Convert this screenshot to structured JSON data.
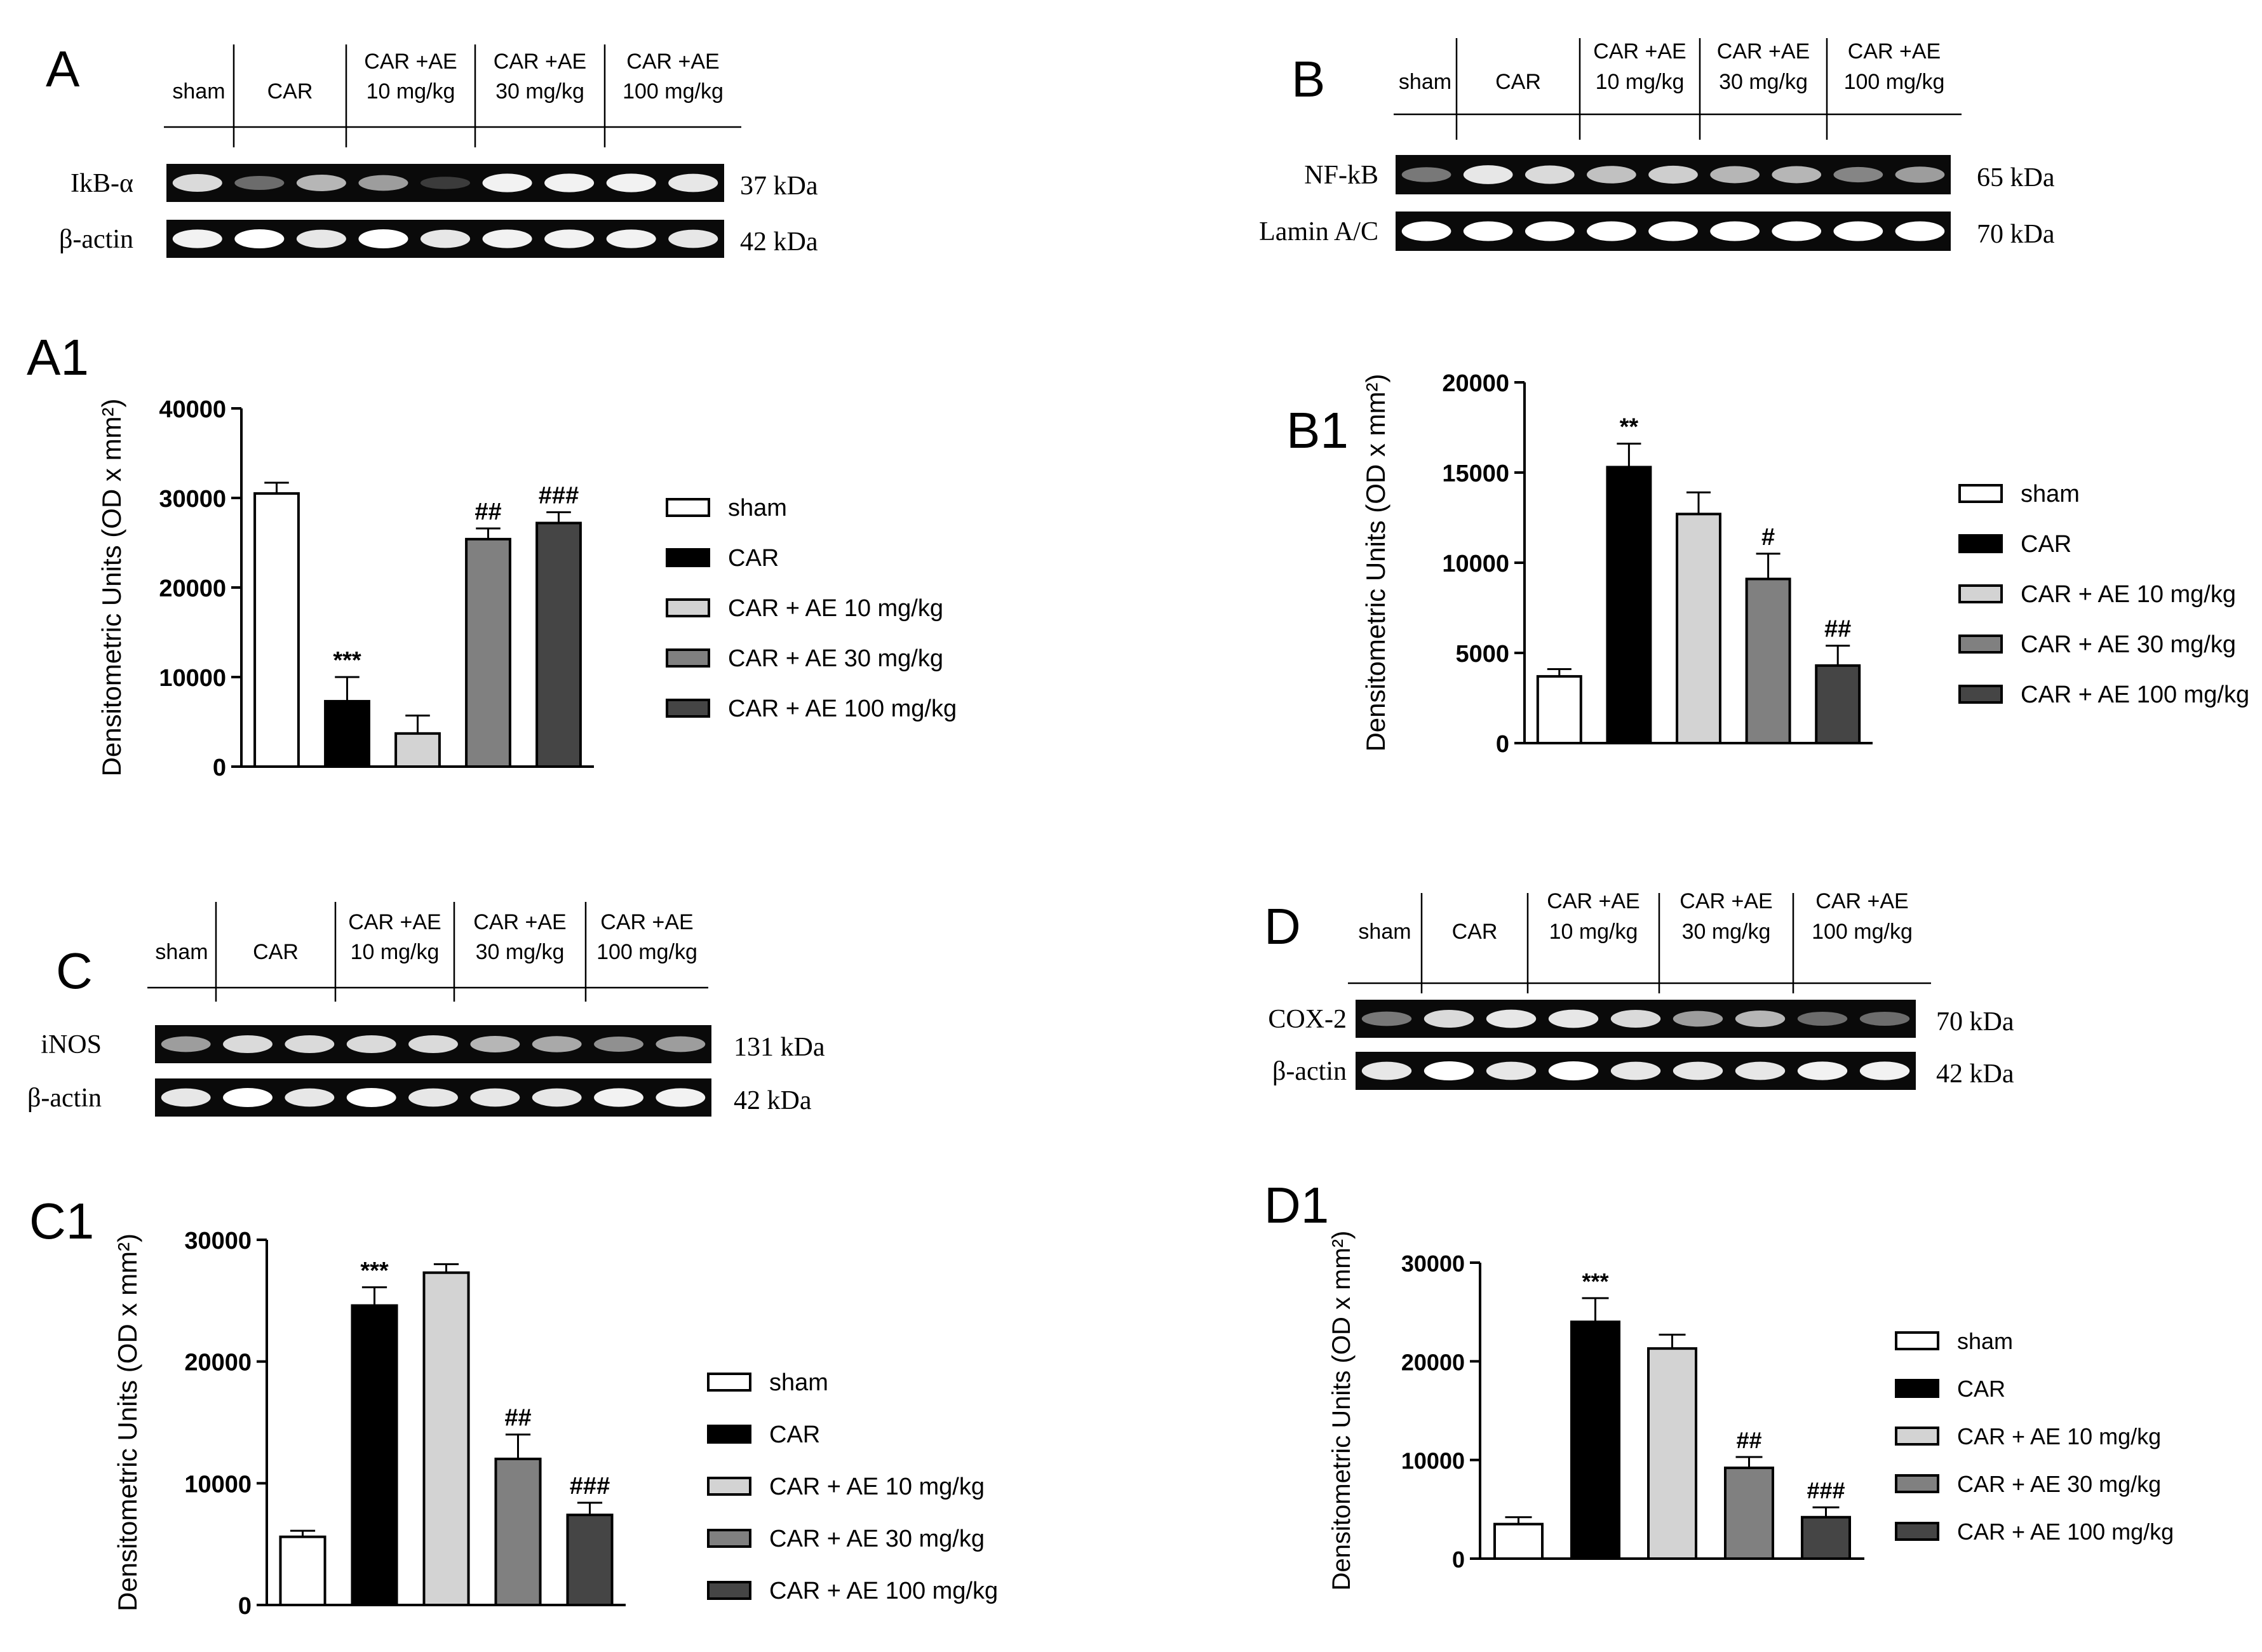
{
  "colors": {
    "sham": "#ffffff",
    "car": "#000000",
    "ae10": "#d3d3d3",
    "ae30": "#808080",
    "ae100": "#454545",
    "axis": "#000000"
  },
  "panels": [
    {
      "id": "A",
      "blot": {
        "letter": "A",
        "header": [
          [
            "sham"
          ],
          [
            "CAR"
          ],
          [
            "CAR +AE",
            "10 mg/kg"
          ],
          [
            "CAR +AE",
            "30 mg/kg"
          ],
          [
            "CAR +AE",
            "100 mg/kg"
          ]
        ],
        "rows": [
          {
            "label": "IkB-α",
            "kda": "37 kDa",
            "intensity": [
              0.85,
              0.4,
              0.7,
              0.6,
              0.2,
              0.95,
              0.95,
              0.95,
              0.9
            ]
          },
          {
            "label": "β-actin",
            "kda": "42 kDa",
            "intensity": [
              0.95,
              1.0,
              0.9,
              1.0,
              0.9,
              0.95,
              0.95,
              0.95,
              0.9
            ]
          }
        ]
      }
    },
    {
      "id": "B",
      "blot": {
        "letter": "B",
        "header": [
          [
            "sham"
          ],
          [
            "CAR"
          ],
          [
            "CAR +AE",
            "10 mg/kg"
          ],
          [
            "CAR +AE",
            "30 mg/kg"
          ],
          [
            "CAR +AE",
            "100 mg/kg"
          ]
        ],
        "rows": [
          {
            "label": "NF-kB",
            "kda": "65 kDa",
            "intensity": [
              0.45,
              0.9,
              0.85,
              0.75,
              0.8,
              0.7,
              0.7,
              0.5,
              0.6
            ]
          },
          {
            "label": "Lamin A/C",
            "kda": "70 kDa",
            "intensity": [
              1.0,
              1.0,
              1.0,
              1.0,
              1.0,
              1.0,
              1.0,
              1.0,
              1.0
            ]
          }
        ]
      }
    },
    {
      "id": "C",
      "blot": {
        "letter": "C",
        "header": [
          [
            "sham"
          ],
          [
            "CAR"
          ],
          [
            "CAR +AE",
            "10 mg/kg"
          ],
          [
            "CAR +AE",
            "30 mg/kg"
          ],
          [
            "CAR +AE",
            "100 mg/kg"
          ]
        ],
        "rows": [
          {
            "label": "iNOS",
            "kda": "131 kDa",
            "intensity": [
              0.6,
              0.85,
              0.85,
              0.85,
              0.85,
              0.7,
              0.65,
              0.55,
              0.6
            ]
          },
          {
            "label": "β-actin",
            "kda": "42 kDa",
            "intensity": [
              0.9,
              1.0,
              0.9,
              1.0,
              0.9,
              0.9,
              0.9,
              0.95,
              0.95
            ]
          }
        ]
      }
    },
    {
      "id": "D",
      "blot": {
        "letter": "D",
        "header": [
          [
            "sham"
          ],
          [
            "CAR"
          ],
          [
            "CAR +AE",
            "10 mg/kg"
          ],
          [
            "CAR +AE",
            "30 mg/kg"
          ],
          [
            "CAR +AE",
            "100 mg/kg"
          ]
        ],
        "rows": [
          {
            "label": "COX-2",
            "kda": "70 kDa",
            "intensity": [
              0.45,
              0.85,
              0.9,
              0.9,
              0.85,
              0.6,
              0.7,
              0.4,
              0.4
            ]
          },
          {
            "label": "β-actin",
            "kda": "42 kDa",
            "intensity": [
              0.9,
              1.0,
              0.9,
              1.0,
              0.9,
              0.9,
              0.9,
              0.95,
              0.95
            ]
          }
        ]
      }
    }
  ],
  "chart_data": [
    {
      "id": "A1",
      "letter": "A1",
      "type": "bar",
      "ylabel": "Densitometric Units (OD x mm²)",
      "ylim": [
        0,
        40000
      ],
      "yticks": [
        0,
        10000,
        20000,
        30000,
        40000
      ],
      "categories": [
        "sham",
        "CAR",
        "CAR + AE 10 mg/kg",
        "CAR + AE 30 mg/kg",
        "CAR + AE 100 mg/kg"
      ],
      "values": [
        30500,
        7300,
        3700,
        25400,
        27200
      ],
      "errors": [
        1200,
        2700,
        2000,
        1200,
        1200
      ],
      "annotations": [
        "",
        "***",
        "",
        "##",
        "###"
      ],
      "legend": [
        "sham",
        "CAR",
        "CAR + AE 10 mg/kg",
        "CAR + AE 30 mg/kg",
        "CAR + AE 100 mg/kg"
      ]
    },
    {
      "id": "B1",
      "letter": "B1",
      "type": "bar",
      "ylabel": "Densitometric Units (OD x mm²)",
      "ylim": [
        0,
        20000
      ],
      "yticks": [
        0,
        5000,
        10000,
        15000,
        20000
      ],
      "categories": [
        "sham",
        "CAR",
        "CAR + AE 10 mg/kg",
        "CAR + AE 30 mg/kg",
        "CAR + AE 100 mg/kg"
      ],
      "values": [
        3700,
        15300,
        12700,
        9100,
        4300
      ],
      "errors": [
        400,
        1300,
        1200,
        1400,
        1100
      ],
      "annotations": [
        "",
        "**",
        "",
        "#",
        "##"
      ],
      "legend": [
        "sham",
        "CAR",
        "CAR + AE 10 mg/kg",
        "CAR + AE 30 mg/kg",
        "CAR + AE 100 mg/kg"
      ]
    },
    {
      "id": "C1",
      "letter": "C1",
      "type": "bar",
      "ylabel": "Densitometric Units (OD x mm²)",
      "ylim": [
        0,
        30000
      ],
      "yticks": [
        0,
        10000,
        20000,
        30000
      ],
      "categories": [
        "sham",
        "CAR",
        "CAR + AE 10 mg/kg",
        "CAR + AE 30 mg/kg",
        "CAR + AE 100 mg/kg"
      ],
      "values": [
        5600,
        24600,
        27300,
        12000,
        7400
      ],
      "errors": [
        500,
        1500,
        700,
        2000,
        1000
      ],
      "annotations": [
        "",
        "***",
        "",
        "##",
        "###"
      ],
      "legend": [
        "sham",
        "CAR",
        "CAR + AE 10 mg/kg",
        "CAR + AE 30 mg/kg",
        "CAR + AE 100 mg/kg"
      ]
    },
    {
      "id": "D1",
      "letter": "D1",
      "type": "bar",
      "ylabel": "Densitometric Units (OD x mm²)",
      "ylim": [
        0,
        30000
      ],
      "yticks": [
        0,
        10000,
        20000,
        30000
      ],
      "categories": [
        "sham",
        "CAR",
        "CAR + AE 10 mg/kg",
        "CAR + AE 30 mg/kg",
        "CAR + AE 100 mg/kg"
      ],
      "values": [
        3500,
        24000,
        21300,
        9200,
        4200
      ],
      "errors": [
        700,
        2400,
        1400,
        1100,
        1000
      ],
      "annotations": [
        "",
        "***",
        "",
        "##",
        "###"
      ],
      "legend": [
        "sham",
        "CAR",
        "CAR + AE 10 mg/kg",
        "CAR + AE 30 mg/kg",
        "CAR + AE 100 mg/kg"
      ]
    }
  ]
}
